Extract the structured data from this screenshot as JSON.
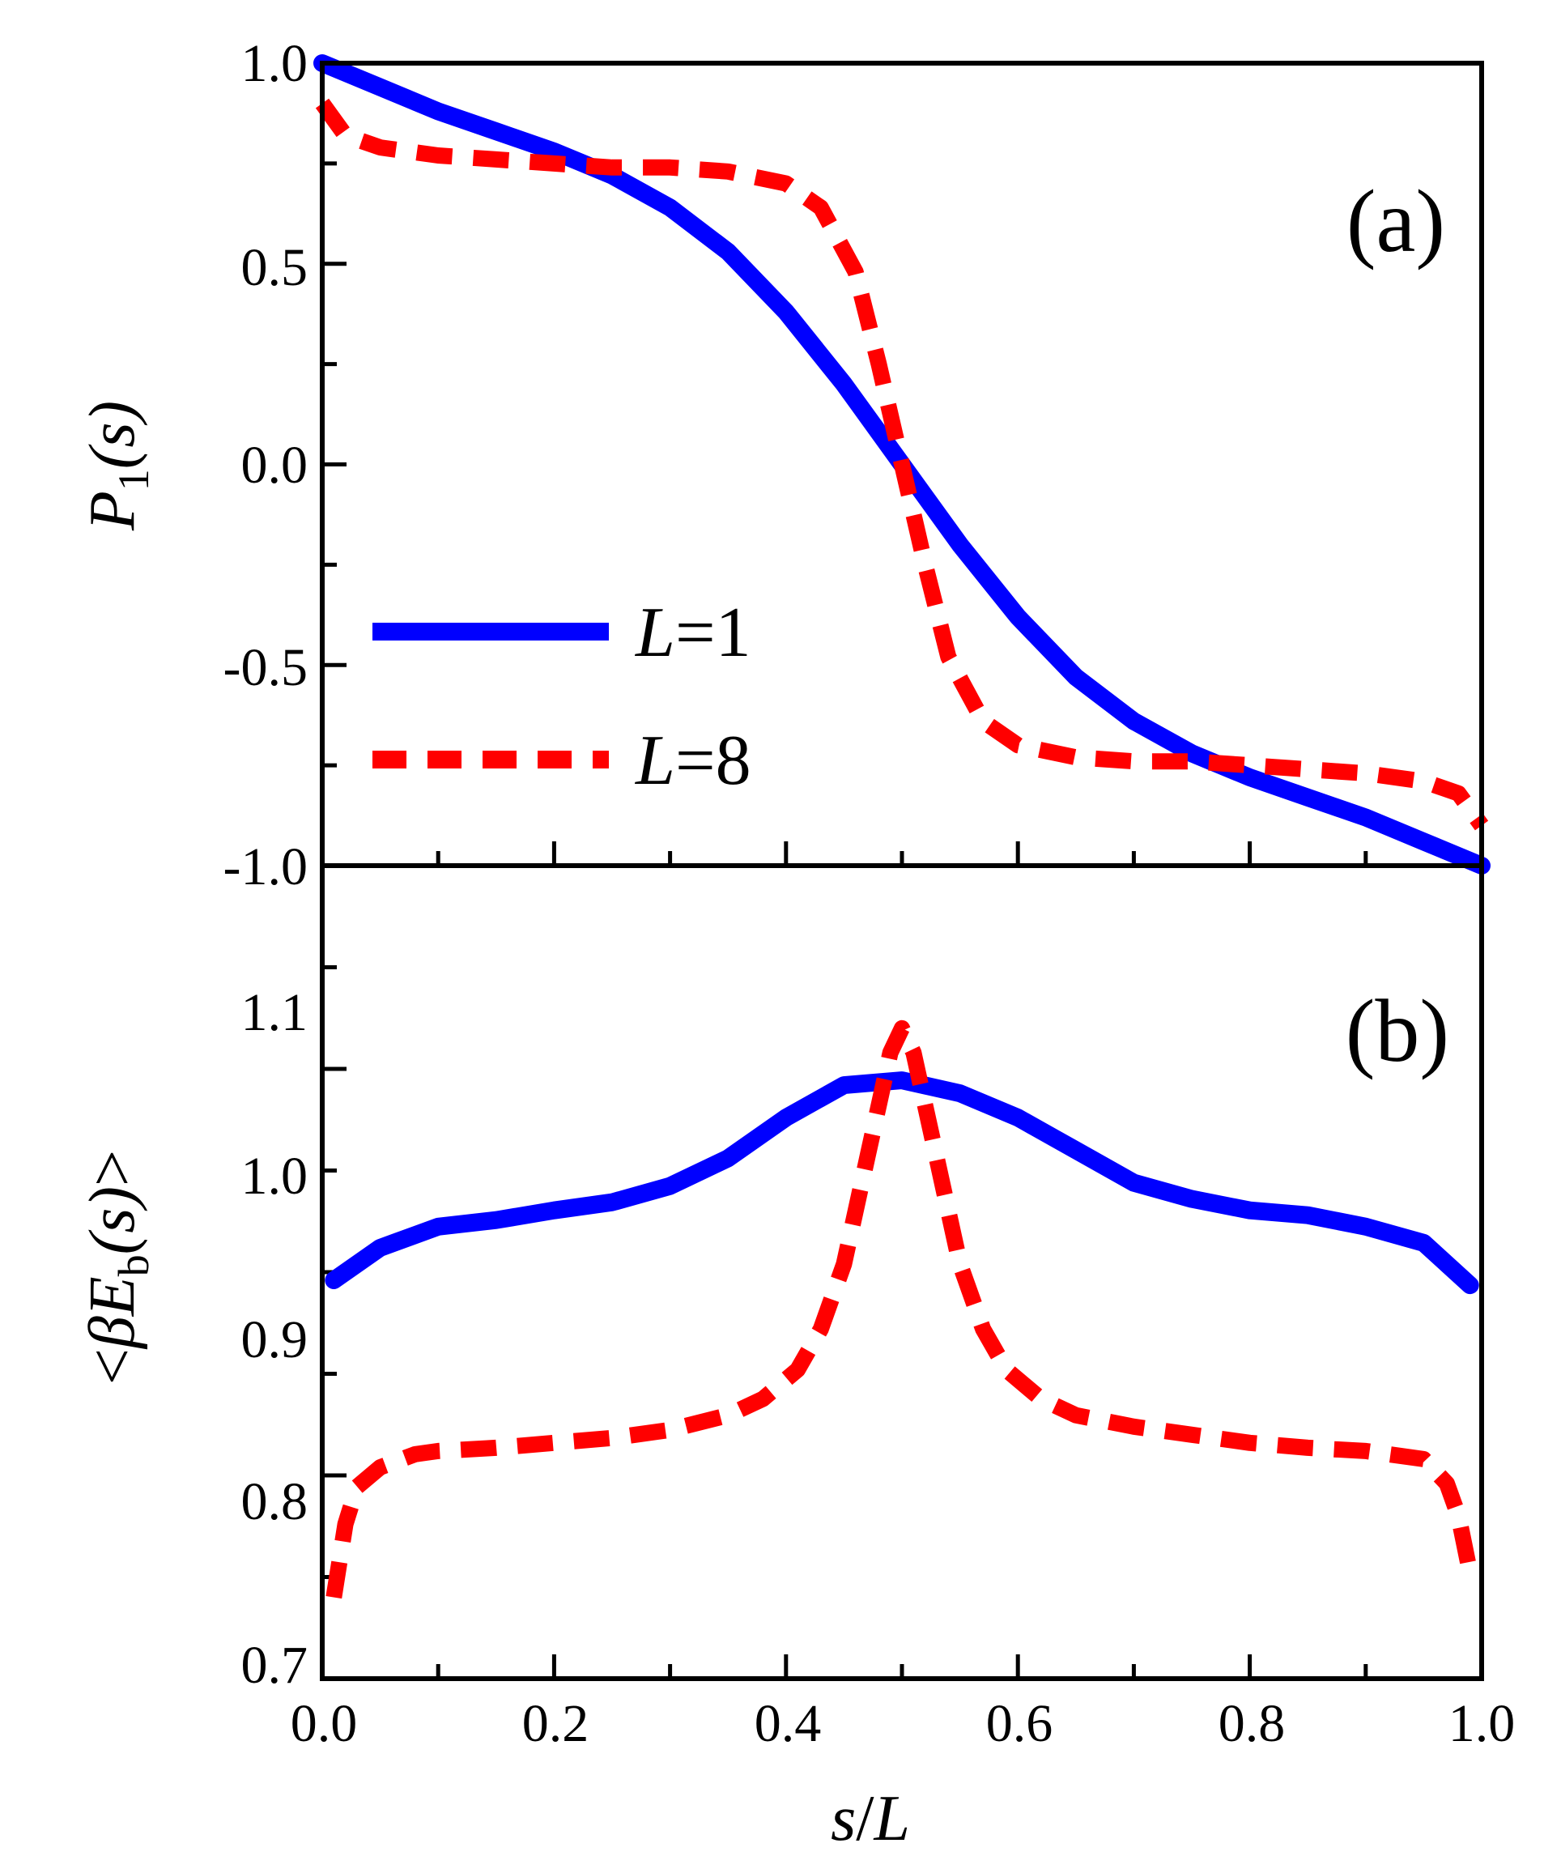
{
  "colors": {
    "line_l1": "#0000ff",
    "line_l8": "#ff0000",
    "axis": "#000000"
  },
  "chart_data": [
    {
      "type": "line",
      "panel_label": "(a)",
      "ylabel_main": "P",
      "ylabel_sub": "1",
      "ylabel_arg": "(s)",
      "xlim": [
        0.0,
        1.0
      ],
      "ylim": [
        -1.0,
        1.0
      ],
      "yticks": [
        "1.0",
        "0.5",
        "0.0",
        "-0.5",
        "-1.0"
      ],
      "legend_position": "lower-left",
      "series": [
        {
          "name": "L=1",
          "legend_var": "L",
          "legend_val": "=1",
          "style": "solid",
          "color": "#0000ff",
          "x": [
            0.0,
            0.05,
            0.1,
            0.15,
            0.2,
            0.25,
            0.3,
            0.35,
            0.4,
            0.45,
            0.5,
            0.55,
            0.6,
            0.65,
            0.7,
            0.75,
            0.8,
            0.85,
            0.9,
            0.95,
            1.0
          ],
          "y": [
            1.0,
            0.94,
            0.88,
            0.83,
            0.78,
            0.72,
            0.64,
            0.53,
            0.38,
            0.2,
            0.0,
            -0.2,
            -0.38,
            -0.53,
            -0.64,
            -0.72,
            -0.78,
            -0.83,
            -0.88,
            -0.94,
            -1.0
          ]
        },
        {
          "name": "L=8",
          "legend_var": "L",
          "legend_val": "=8",
          "style": "dashed",
          "color": "#ff0000",
          "x": [
            0.0,
            0.02,
            0.05,
            0.1,
            0.15,
            0.2,
            0.25,
            0.3,
            0.35,
            0.4,
            0.43,
            0.46,
            0.48,
            0.5,
            0.52,
            0.54,
            0.57,
            0.6,
            0.65,
            0.7,
            0.75,
            0.8,
            0.85,
            0.9,
            0.95,
            0.98,
            1.0
          ],
          "y": [
            0.9,
            0.82,
            0.79,
            0.77,
            0.76,
            0.75,
            0.74,
            0.74,
            0.73,
            0.7,
            0.64,
            0.48,
            0.25,
            0.0,
            -0.25,
            -0.48,
            -0.64,
            -0.7,
            -0.73,
            -0.74,
            -0.74,
            -0.75,
            -0.76,
            -0.77,
            -0.79,
            -0.82,
            -0.9
          ]
        }
      ]
    },
    {
      "type": "line",
      "panel_label": "(b)",
      "ylabel_lt": "<",
      "ylabel_beta": "β",
      "ylabel_main": "E",
      "ylabel_sub": "b",
      "ylabel_arg": "(s)",
      "ylabel_gt": ">",
      "xlabel_var": "s",
      "xlabel_sep": "/",
      "xlabel_var2": "L",
      "xlim": [
        0.0,
        1.0
      ],
      "ylim": [
        0.7,
        1.2
      ],
      "xticks": [
        "0.0",
        "0.2",
        "0.4",
        "0.6",
        "0.8",
        "1.0"
      ],
      "yticks": [
        "1.1",
        "1.0",
        "0.9",
        "0.8",
        "0.7"
      ],
      "series": [
        {
          "name": "L=1",
          "style": "solid",
          "color": "#0000ff",
          "x": [
            0.01,
            0.05,
            0.1,
            0.15,
            0.2,
            0.25,
            0.3,
            0.35,
            0.4,
            0.45,
            0.5,
            0.55,
            0.6,
            0.65,
            0.7,
            0.75,
            0.8,
            0.85,
            0.9,
            0.95,
            0.99
          ],
          "y": [
            0.945,
            0.965,
            0.978,
            0.982,
            0.988,
            0.993,
            1.003,
            1.02,
            1.045,
            1.065,
            1.068,
            1.06,
            1.045,
            1.025,
            1.005,
            0.995,
            0.988,
            0.985,
            0.978,
            0.968,
            0.942
          ]
        },
        {
          "name": "L=8",
          "style": "dashed",
          "color": "#ff0000",
          "x": [
            0.01,
            0.02,
            0.03,
            0.05,
            0.08,
            0.1,
            0.15,
            0.2,
            0.25,
            0.3,
            0.35,
            0.38,
            0.41,
            0.43,
            0.45,
            0.47,
            0.49,
            0.5,
            0.51,
            0.53,
            0.55,
            0.57,
            0.59,
            0.62,
            0.65,
            0.7,
            0.75,
            0.8,
            0.85,
            0.9,
            0.95,
            0.97,
            0.98,
            0.99
          ],
          "y": [
            0.75,
            0.795,
            0.818,
            0.83,
            0.838,
            0.84,
            0.842,
            0.845,
            0.848,
            0.853,
            0.862,
            0.872,
            0.89,
            0.915,
            0.955,
            1.02,
            1.085,
            1.1,
            1.085,
            1.02,
            0.955,
            0.915,
            0.89,
            0.872,
            0.862,
            0.855,
            0.85,
            0.845,
            0.842,
            0.84,
            0.835,
            0.82,
            0.8,
            0.765
          ]
        }
      ]
    }
  ]
}
